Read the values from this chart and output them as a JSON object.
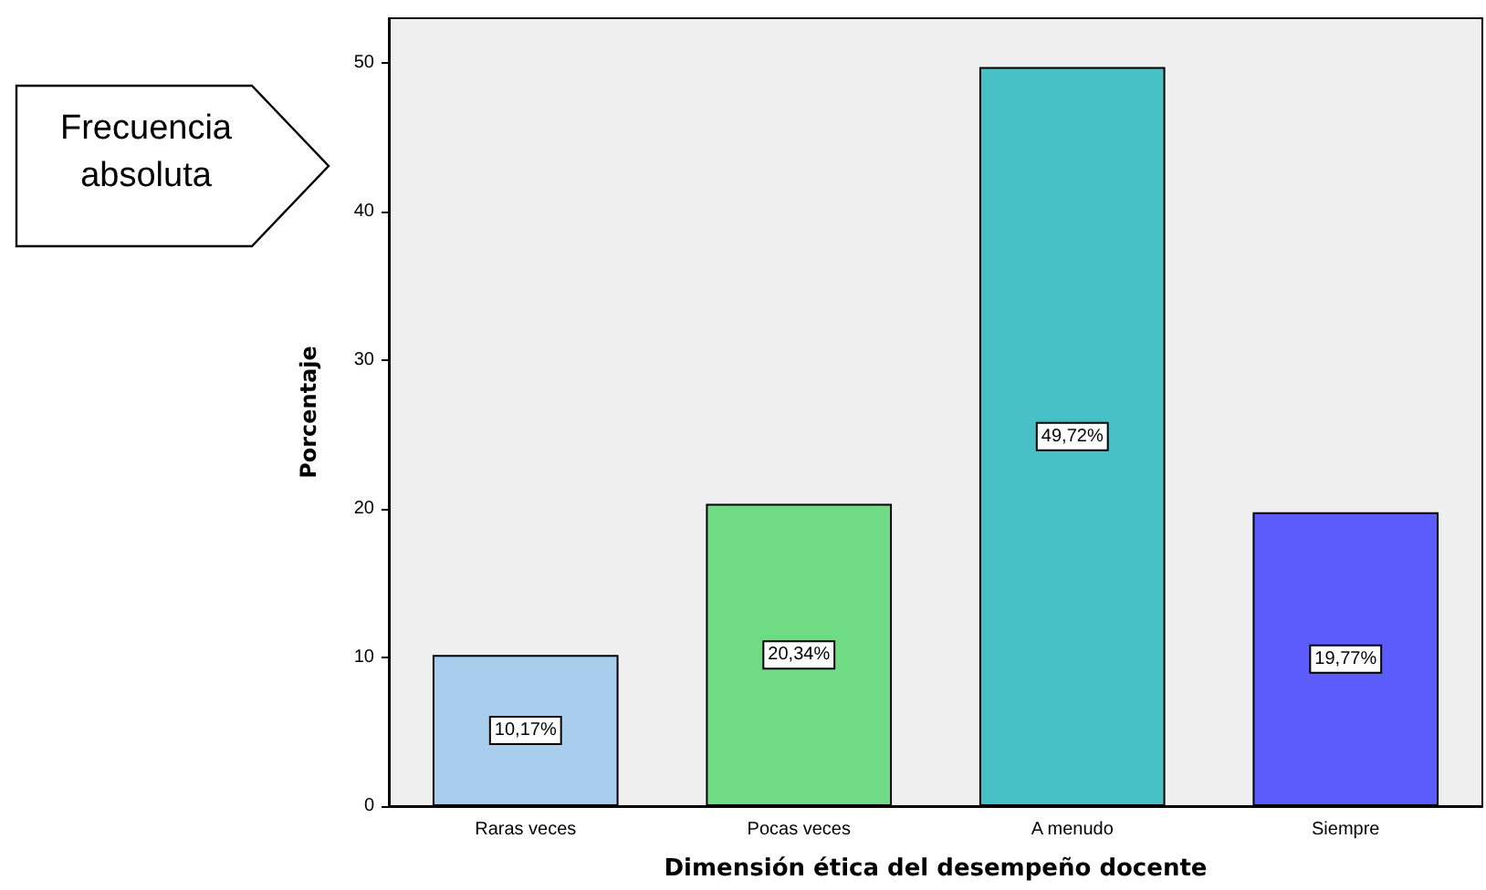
{
  "chart_data": {
    "type": "bar",
    "xlabel": "Dimensión ética del desempeño docente",
    "ylabel": "Porcentaje",
    "categories": [
      "Raras veces",
      "Pocas veces",
      "A menudo",
      "Siempre"
    ],
    "values": [
      10.17,
      20.34,
      49.72,
      19.77
    ],
    "colors": [
      "#a9cdec",
      "#70db85",
      "#47c1c5",
      "#5b5cfb"
    ],
    "value_labels": [
      "10,17%",
      "20,34%",
      "49,72%",
      "19,77%"
    ],
    "ylim": [
      0,
      53
    ],
    "yticks": [
      0,
      10,
      20,
      30,
      40,
      50
    ],
    "grid": false,
    "annotations": [
      "Frecuencia absoluta"
    ]
  }
}
